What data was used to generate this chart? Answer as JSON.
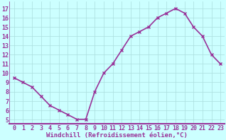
{
  "x": [
    0,
    1,
    2,
    3,
    4,
    5,
    6,
    7,
    8,
    9,
    10,
    11,
    12,
    13,
    14,
    15,
    16,
    17,
    18,
    19,
    20,
    21,
    22,
    23
  ],
  "y": [
    9.5,
    9.0,
    8.5,
    7.5,
    6.5,
    6.0,
    5.5,
    5.0,
    5.0,
    8.0,
    10.0,
    11.0,
    12.5,
    14.0,
    14.5,
    15.0,
    16.0,
    16.5,
    17.0,
    16.5,
    15.0,
    14.0,
    12.0,
    11.0
  ],
  "line_color": "#993399",
  "marker": "x",
  "marker_color": "#993399",
  "bg_color": "#ccffff",
  "grid_color": "#aadddd",
  "xlabel": "Windchill (Refroidissement éolien,°C)",
  "xlabel_color": "#993399",
  "tick_color": "#993399",
  "border_color": "#993399",
  "ylim": [
    4.5,
    17.8
  ],
  "xlim": [
    -0.5,
    23.5
  ],
  "yticks": [
    5,
    6,
    7,
    8,
    9,
    10,
    11,
    12,
    13,
    14,
    15,
    16,
    17
  ],
  "xticks": [
    0,
    1,
    2,
    3,
    4,
    5,
    6,
    7,
    8,
    9,
    10,
    11,
    12,
    13,
    14,
    15,
    16,
    17,
    18,
    19,
    20,
    21,
    22,
    23
  ],
  "font_size": 6.5,
  "line_width": 1.2,
  "marker_size": 3.5
}
